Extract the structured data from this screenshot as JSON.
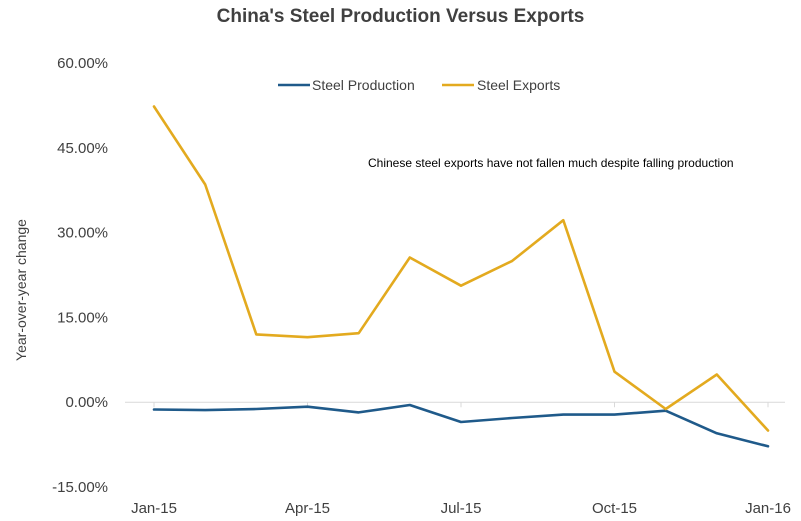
{
  "chart_data": {
    "type": "line",
    "title": "China's Steel Production Versus Exports",
    "ylabel": "Year-over-year change",
    "xlabel": "",
    "ylim": [
      -15,
      60
    ],
    "yticks": [
      -15,
      0,
      15,
      30,
      45,
      60
    ],
    "ytick_labels": [
      "-15.00%",
      "0.00%",
      "15.00%",
      "30.00%",
      "45.00%",
      "60.00%"
    ],
    "x": [
      "Jan-15",
      "Feb-15",
      "Mar-15",
      "Apr-15",
      "May-15",
      "Jun-15",
      "Jul-15",
      "Aug-15",
      "Sep-15",
      "Oct-15",
      "Nov-15",
      "Dec-15",
      "Jan-16"
    ],
    "xtick_labels": [
      "Jan-15",
      "Apr-15",
      "Jul-15",
      "Oct-15",
      "Jan-16"
    ],
    "xtick_indices": [
      0,
      3,
      6,
      9,
      12
    ],
    "series": [
      {
        "name": "Steel Production",
        "color": "#1f5a8a",
        "values": [
          -1.3,
          -1.4,
          -1.2,
          -0.8,
          -1.8,
          -0.5,
          -3.5,
          -2.8,
          -2.2,
          -2.2,
          -1.5,
          -5.5,
          -7.8
        ]
      },
      {
        "name": "Steel Exports",
        "color": "#e3aa1f",
        "values": [
          52.3,
          38.5,
          12.0,
          11.5,
          12.2,
          25.6,
          20.6,
          25.0,
          32.2,
          5.4,
          -1.2,
          4.9,
          -5.0
        ]
      }
    ],
    "legend_position": "top-center",
    "annotation": "Chinese steel exports have not fallen much despite falling production",
    "grid": false
  }
}
